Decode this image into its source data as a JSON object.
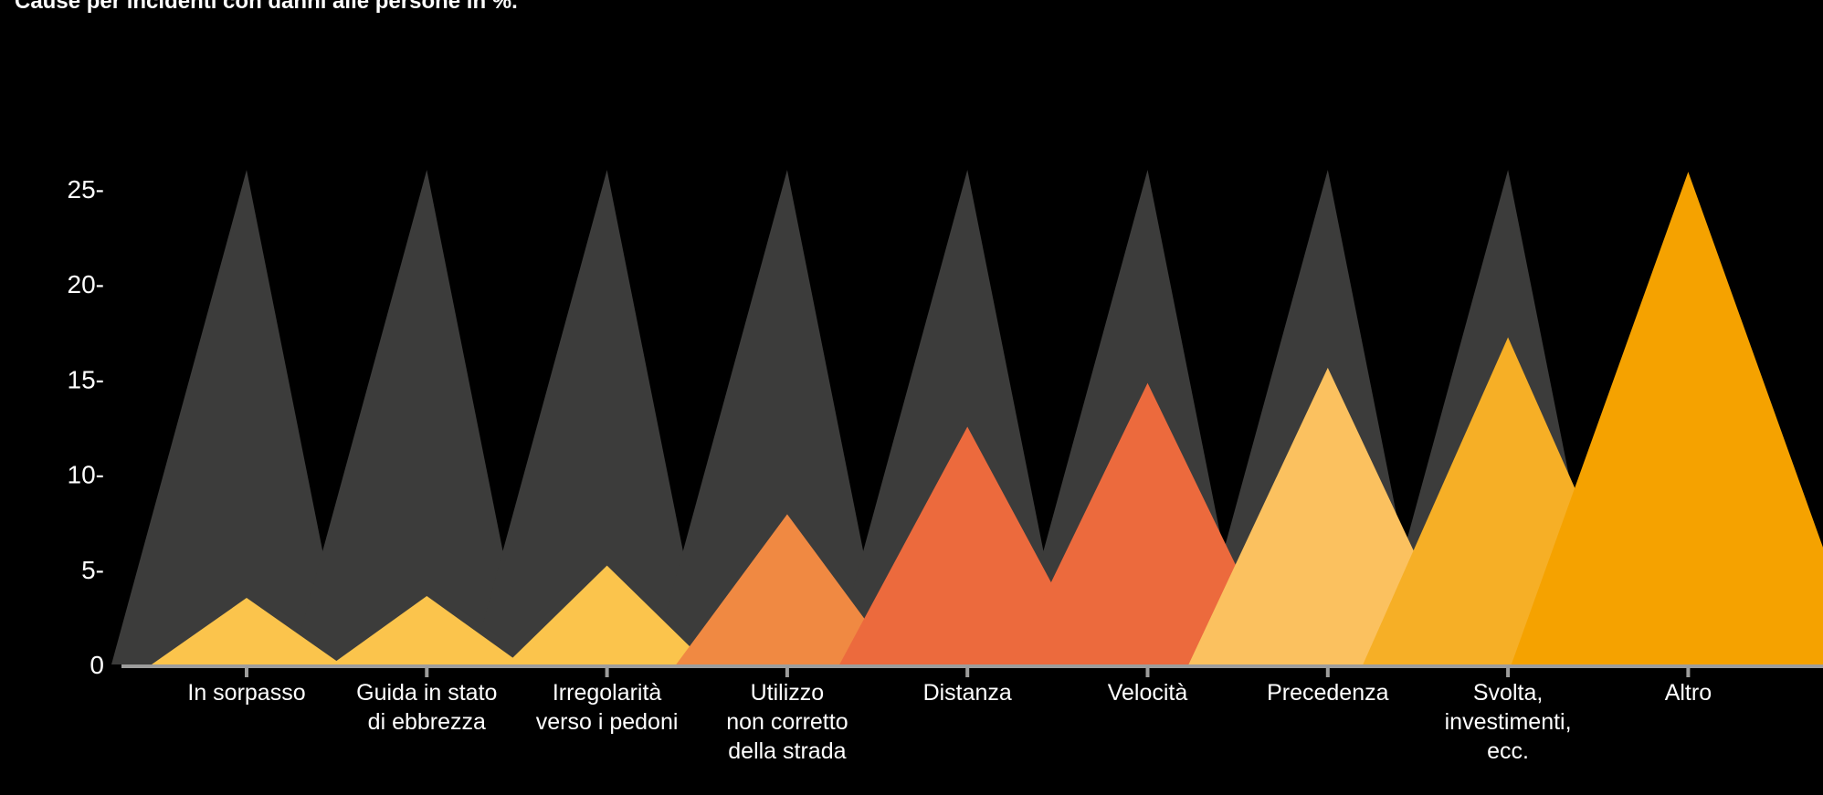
{
  "title": "Cause per incidenti con danni alle persone in %.",
  "chart_data": {
    "type": "area",
    "title": "Cause per incidenti con danni alle persone in %.",
    "xlabel": "",
    "ylabel": "",
    "ylim": [
      0,
      26
    ],
    "yticks": [
      0,
      5,
      10,
      15,
      20,
      25
    ],
    "ytick_labels": [
      "0",
      "5-",
      "10-",
      "15-",
      "20-",
      "25-"
    ],
    "categories": [
      [
        "In sorpasso"
      ],
      [
        "Guida in stato",
        "di ebbrezza"
      ],
      [
        "Irregolarità",
        "verso i pedoni"
      ],
      [
        "Utilizzo",
        "non corretto",
        "della strada"
      ],
      [
        "Distanza"
      ],
      [
        "Velocità"
      ],
      [
        "Precedenza"
      ],
      [
        "Svolta,",
        "investimenti,",
        "ecc."
      ],
      [
        "Altro"
      ]
    ],
    "values": [
      3.5,
      3.6,
      5.2,
      7.9,
      12.5,
      14.8,
      15.6,
      17.2,
      25.9
    ],
    "background_peak": 26,
    "colors": [
      "#FBC44C",
      "#FBC44C",
      "#FBC44C",
      "#F08942",
      "#EC6A3D",
      "#EC6A3D",
      "#FBC15F",
      "#F6AF26",
      "#F5A200"
    ],
    "background_color": "#3C3C3B",
    "axis_color": "#9D9D9C",
    "grid": false
  }
}
